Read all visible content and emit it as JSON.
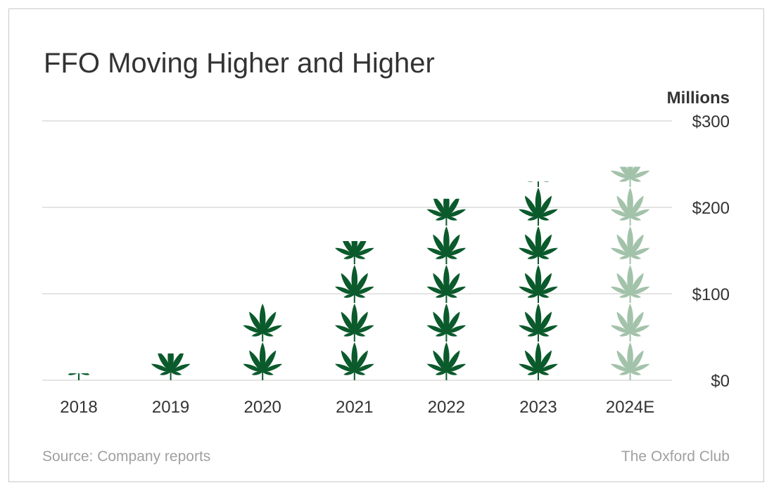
{
  "chart_data": {
    "type": "bar",
    "title": "FFO Moving Higher and Higher",
    "unit_label": "Millions",
    "categories": [
      "2018",
      "2019",
      "2020",
      "2021",
      "2022",
      "2023",
      "2024E"
    ],
    "values": [
      8,
      31,
      90,
      161,
      210,
      230,
      247
    ],
    "estimate_flags": [
      false,
      false,
      false,
      false,
      false,
      false,
      true
    ],
    "ylim": [
      0,
      300
    ],
    "yticks": [
      0,
      100,
      200,
      300
    ],
    "ytick_labels": [
      "$0",
      "$100",
      "$200",
      "$300"
    ],
    "grid": true,
    "mark": "cannabis-leaf-pictograph",
    "colors": {
      "actual": "#0b5a2c",
      "estimate": "#a3c2aa",
      "grid": "#c8c8c8",
      "text": "#333333",
      "footer": "#a0a0a0"
    }
  },
  "footer": {
    "source": "Source: Company reports",
    "brand": "The Oxford Club"
  }
}
